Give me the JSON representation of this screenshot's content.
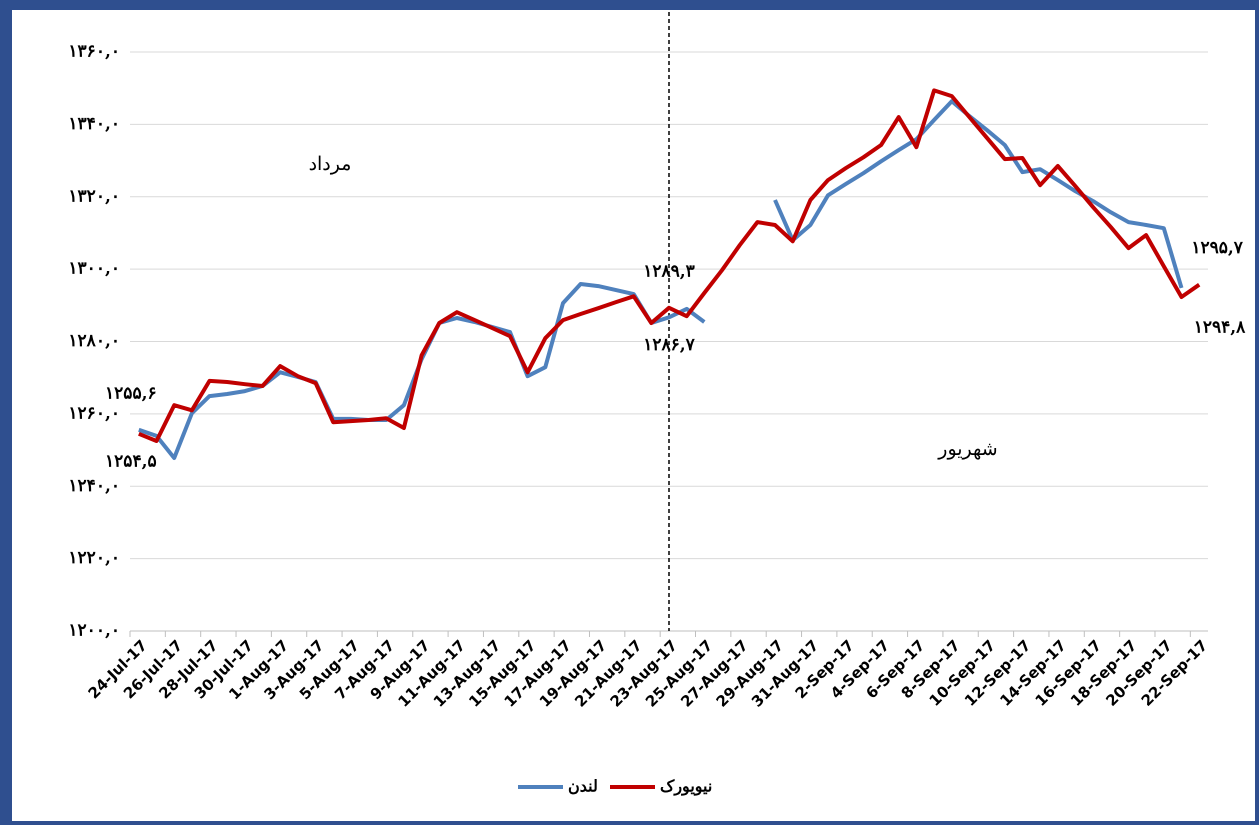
{
  "chart_data": {
    "type": "line",
    "categories": [
      "24-Jul-17",
      null,
      "26-Jul-17",
      null,
      "28-Jul-17",
      null,
      "30-Jul-17",
      null,
      "1-Aug-17",
      null,
      "3-Aug-17",
      null,
      "5-Aug-17",
      null,
      "7-Aug-17",
      null,
      "9-Aug-17",
      null,
      "11-Aug-17",
      null,
      "13-Aug-17",
      null,
      "15-Aug-17",
      null,
      "17-Aug-17",
      null,
      "19-Aug-17",
      null,
      "21-Aug-17",
      null,
      "23-Aug-17",
      null,
      "25-Aug-17",
      null,
      "27-Aug-17",
      null,
      "29-Aug-17",
      null,
      "31-Aug-17",
      null,
      "2-Sep-17",
      null,
      "4-Sep-17",
      null,
      "6-Sep-17",
      null,
      "8-Sep-17",
      null,
      "10-Sep-17",
      null,
      "12-Sep-17",
      null,
      "14-Sep-17",
      null,
      "16-Sep-17",
      null,
      "18-Sep-17",
      null,
      "20-Sep-17",
      null,
      "22-Sep-17"
    ],
    "series": [
      {
        "name": "لندن",
        "color": "#4f81bd",
        "values": [
          1255.6,
          1253.9,
          1247.8,
          1260.2,
          1264.9,
          1265.5,
          1266.3,
          1267.7,
          1271.5,
          1270.2,
          1268.8,
          1258.6,
          1258.6,
          1258.3,
          1258.3,
          1262.4,
          1275.1,
          1285.1,
          1286.5,
          1285.4,
          1284.0,
          1282.6,
          1270.4,
          1272.9,
          1290.6,
          1295.9,
          1295.3,
          1294.2,
          1293.1,
          1285.1,
          1286.7,
          1289.0,
          1285.4,
          null,
          null,
          null,
          1319.1,
          1308.0,
          1312.2,
          1320.4,
          1323.5,
          1326.5,
          1329.8,
          1332.9,
          1335.9,
          1341.2,
          1346.4,
          1342.3,
          1338.4,
          1334.3,
          1326.8,
          1327.6,
          1324.6,
          1321.5,
          1318.8,
          1315.7,
          1313.0,
          1312.2,
          1311.3,
          1294.8,
          null
        ],
        "value_labels": [
          "۱۲۵۵,۶",
          null,
          null,
          null,
          null,
          null,
          null,
          null,
          null,
          null,
          null,
          null,
          null,
          null,
          null,
          null,
          null,
          null,
          null,
          null,
          null,
          null,
          null,
          null,
          null,
          null,
          null,
          null,
          null,
          null,
          "۱۲۸۶,۷",
          null,
          null,
          null,
          null,
          null,
          null,
          null,
          null,
          null,
          null,
          null,
          null,
          null,
          null,
          null,
          null,
          null,
          null,
          null,
          null,
          null,
          null,
          null,
          null,
          null,
          null,
          null,
          null,
          "۱۲۹۴,۸",
          null
        ]
      },
      {
        "name": "نیویورک",
        "color": "#c00000",
        "values": [
          1254.5,
          1252.5,
          1262.4,
          1261.0,
          1269.1,
          1268.8,
          1268.2,
          1267.7,
          1273.2,
          1270.4,
          1268.5,
          1257.7,
          1258.0,
          1258.3,
          1258.8,
          1256.1,
          1276.2,
          1285.1,
          1288.1,
          1285.9,
          1283.7,
          1281.5,
          1271.5,
          1280.9,
          1285.9,
          1287.6,
          1289.2,
          1290.9,
          1292.5,
          1285.1,
          1289.3,
          1287.0,
          1293.4,
          1299.7,
          1306.6,
          1313.0,
          1312.2,
          1307.7,
          1319.1,
          1324.6,
          1327.9,
          1330.9,
          1334.3,
          1342.0,
          1333.7,
          1349.4,
          1347.8,
          1342.0,
          1336.2,
          1330.4,
          1330.7,
          1323.2,
          1328.5,
          1322.9,
          1317.1,
          1311.6,
          1305.8,
          1309.4,
          1300.8,
          1292.3,
          1295.7
        ],
        "value_labels": [
          "۱۲۵۴,۵",
          null,
          null,
          null,
          null,
          null,
          null,
          null,
          null,
          null,
          null,
          null,
          null,
          null,
          null,
          null,
          null,
          null,
          null,
          null,
          null,
          null,
          null,
          null,
          null,
          null,
          null,
          null,
          null,
          null,
          "۱۲۸۹,۳",
          null,
          null,
          null,
          null,
          null,
          null,
          null,
          null,
          null,
          null,
          null,
          null,
          null,
          null,
          null,
          null,
          null,
          null,
          null,
          null,
          null,
          null,
          null,
          null,
          null,
          null,
          null,
          null,
          null,
          "۱۲۹۵,۷"
        ]
      }
    ],
    "ylim": [
      1200,
      1360
    ],
    "yticks": [
      {
        "value": 1200,
        "label": "۱۲۰۰,۰"
      },
      {
        "value": 1220,
        "label": "۱۲۲۰,۰"
      },
      {
        "value": 1240,
        "label": "۱۲۴۰,۰"
      },
      {
        "value": 1260,
        "label": "۱۲۶۰,۰"
      },
      {
        "value": 1280,
        "label": "۱۲۸۰,۰"
      },
      {
        "value": 1300,
        "label": "۱۳۰۰,۰"
      },
      {
        "value": 1320,
        "label": "۱۳۲۰,۰"
      },
      {
        "value": 1340,
        "label": "۱۳۴۰,۰"
      },
      {
        "value": 1360,
        "label": "۱۳۶۰,۰"
      }
    ],
    "grid": true,
    "legend": "bottom",
    "annotations": [
      "مرداد",
      "شهریور"
    ]
  }
}
